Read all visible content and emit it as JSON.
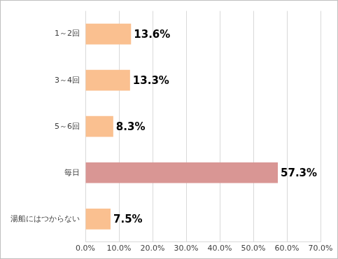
{
  "chart_data": {
    "type": "bar",
    "orientation": "horizontal",
    "categories": [
      "1～2回",
      "3～4回",
      "5～6回",
      "毎日",
      "湯船にはつからない"
    ],
    "values": [
      13.6,
      13.3,
      8.3,
      57.3,
      7.5
    ],
    "value_labels": [
      "13.6%",
      "13.3%",
      "8.3%",
      "57.3%",
      "7.5%"
    ],
    "colors": [
      "#fac090",
      "#fac090",
      "#fac090",
      "#d99694",
      "#fac090"
    ],
    "xlim": [
      0,
      70
    ],
    "xticks": [
      {
        "value": 0,
        "label": "0.0%"
      },
      {
        "value": 10,
        "label": "10.0%"
      },
      {
        "value": 20,
        "label": "20.0%"
      },
      {
        "value": 30,
        "label": "30.0%"
      },
      {
        "value": 40,
        "label": "40.0%"
      },
      {
        "value": 50,
        "label": "50.0%"
      },
      {
        "value": 60,
        "label": "60.0%"
      },
      {
        "value": 70,
        "label": "70.0%"
      }
    ],
    "grid": true,
    "data_labels": true
  }
}
